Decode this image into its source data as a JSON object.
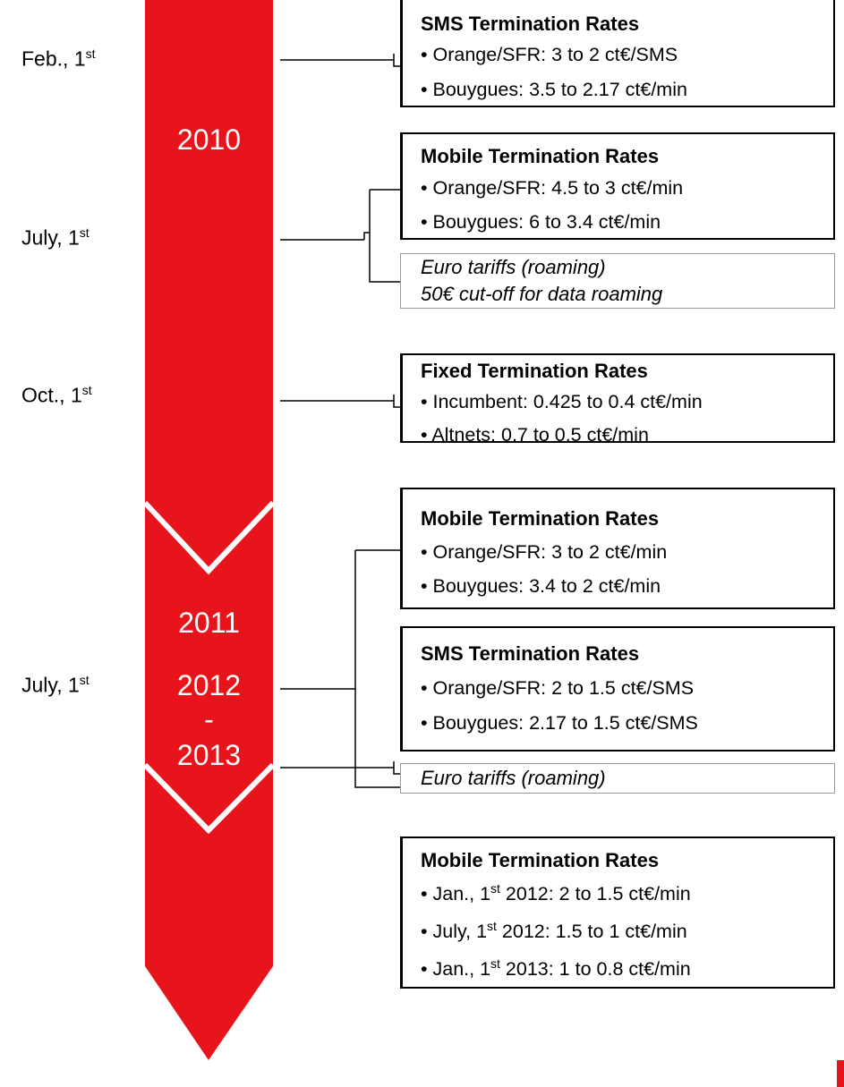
{
  "years": [
    "2010",
    "2011",
    "2012",
    "-",
    "2013"
  ],
  "dates": [
    {
      "text": "Feb., 1",
      "sup": "st"
    },
    {
      "text": "July, 1",
      "sup": "st"
    },
    {
      "text": "Oct., 1",
      "sup": "st"
    },
    {
      "text": "July, 1",
      "sup": "st"
    }
  ],
  "boxes": [
    {
      "title": "SMS Termination Rates",
      "bullets": [
        "• Orange/SFR: 3 to 2 ct€/SMS",
        "• Bouygues: 3.5 to 2.17 ct€/min"
      ]
    },
    {
      "title": "Mobile Termination Rates",
      "bullets": [
        "• Orange/SFR: 4.5 to 3 ct€/min",
        "• Bouygues: 6 to 3.4 ct€/min"
      ]
    },
    {
      "title": "Fixed Termination Rates",
      "bullets": [
        "• Incumbent: 0.425 to 0.4 ct€/min",
        "• Altnets: 0.7 to 0.5 ct€/min"
      ]
    },
    {
      "title": "Mobile Termination Rates",
      "bullets": [
        "• Orange/SFR:  3 to 2 ct€/min",
        "• Bouygues: 3.4 to 2 ct€/min"
      ]
    },
    {
      "title": "SMS Termination Rates",
      "bullets": [
        "• Orange/SFR: 2 to 1.5 ct€/SMS",
        "• Bouygues: 2.17 to 1.5 ct€/SMS"
      ]
    },
    {
      "title": "Mobile Termination Rates",
      "bullets": [
        {
          "pre": "• Jan., 1",
          "sup": "st",
          "post": " 2012: 2 to 1.5 ct€/min"
        },
        {
          "pre": "• July, 1",
          "sup": "st",
          "post": " 2012: 1.5 to 1 ct€/min"
        },
        {
          "pre": "• Jan., 1",
          "sup": "st",
          "post": " 2013: 1 to 0.8 ct€/min"
        }
      ]
    }
  ],
  "notes": [
    {
      "lines": [
        "Euro tariffs (roaming)",
        "50€ cut-off for data roaming"
      ]
    },
    {
      "lines": [
        "Euro tariffs (roaming)"
      ]
    }
  ]
}
